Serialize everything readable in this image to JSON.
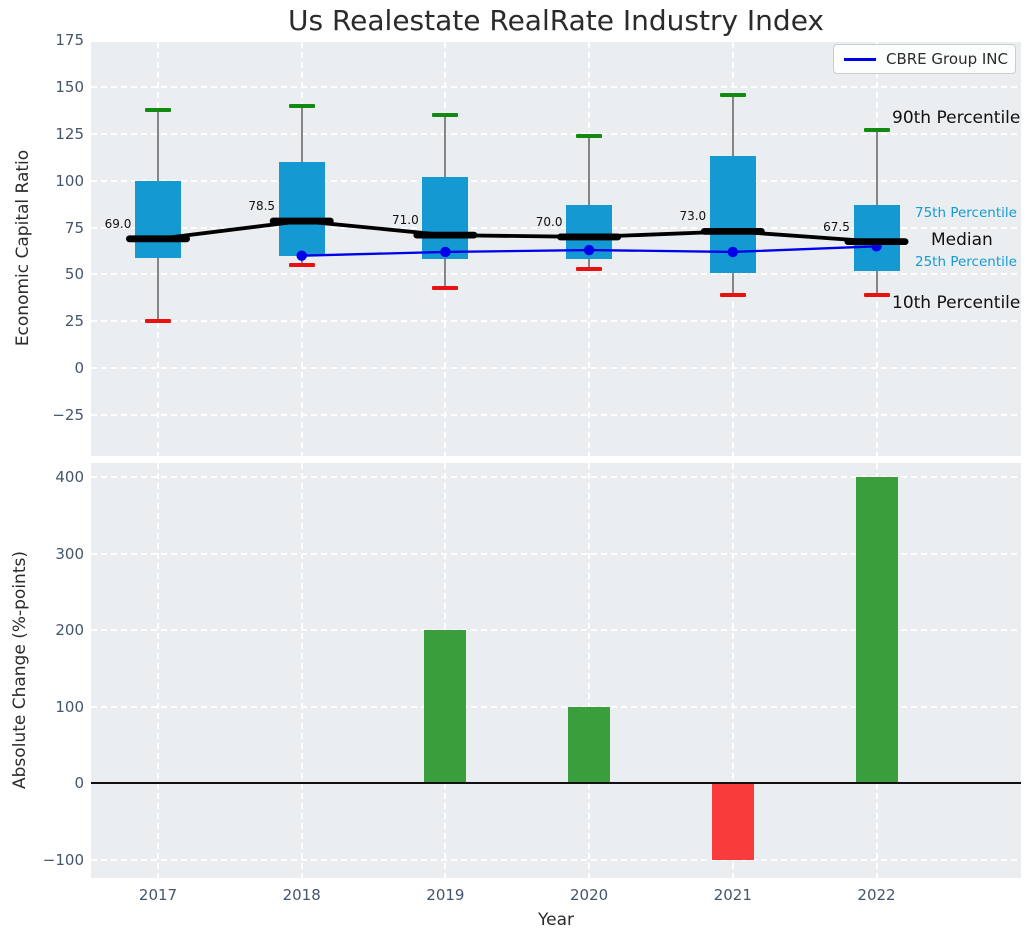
{
  "title": "Us Realestate RealRate Industry Index",
  "legend": {
    "label": "CBRE Group INC"
  },
  "colors": {
    "axes_background": "#eaeef1",
    "grid": "#ffffff",
    "box_fill": "#1499d3",
    "whisker": "#858585",
    "cap_90th": "#128a12",
    "cap_10th": "#e81212",
    "median_line": "#000000",
    "cbre_line": "#0000e8",
    "bar_positive": "#3a9e3c",
    "bar_negative": "#f93b3b",
    "tick_text": "#44566b",
    "percentile_small_text": "#179bd4"
  },
  "top_chart": {
    "ylabel": "Economic Capital Ratio",
    "yticks": [
      "175",
      "150",
      "125",
      "100",
      "75",
      "50",
      "25",
      "0",
      "−25"
    ],
    "ytick_values": [
      175,
      150,
      125,
      100,
      75,
      50,
      25,
      0,
      -25
    ],
    "percentile_labels": {
      "p90": "90th Percentile",
      "p75": "75th Percentile",
      "median": "Median",
      "p25": "25th Percentile",
      "p10": "10th Percentile"
    }
  },
  "bottom_chart": {
    "ylabel": "Absolute Change (%-points)",
    "xlabel": "Year",
    "yticks": [
      "400",
      "300",
      "200",
      "100",
      "0",
      "−100"
    ],
    "ytick_values": [
      400,
      300,
      200,
      100,
      0,
      -100
    ]
  },
  "chart_data": [
    {
      "type": "box",
      "title": "Us Realestate RealRate Industry Index",
      "ylabel": "Economic Capital Ratio",
      "categories": [
        "2017",
        "2018",
        "2019",
        "2020",
        "2021",
        "2022"
      ],
      "boxes": [
        {
          "year": "2017",
          "p10": 25,
          "p25": 59,
          "median": 69.0,
          "p75": 100,
          "p90": 138,
          "median_label": "69.0"
        },
        {
          "year": "2018",
          "p10": 55,
          "p25": 60,
          "median": 78.5,
          "p75": 110,
          "p90": 140,
          "median_label": "78.5"
        },
        {
          "year": "2019",
          "p10": 43,
          "p25": 58,
          "median": 71.0,
          "p75": 102,
          "p90": 135,
          "median_label": "71.0"
        },
        {
          "year": "2020",
          "p10": 53,
          "p25": 58,
          "median": 70.0,
          "p75": 87,
          "p90": 124,
          "median_label": "70.0"
        },
        {
          "year": "2021",
          "p10": 39,
          "p25": 51,
          "median": 73.0,
          "p75": 113,
          "p90": 146,
          "median_label": "73.0"
        },
        {
          "year": "2022",
          "p10": 39,
          "p25": 52,
          "median": 67.5,
          "p75": 87,
          "p90": 127,
          "median_label": "67.5"
        }
      ],
      "series": [
        {
          "name": "CBRE Group INC",
          "x": [
            "2018",
            "2019",
            "2020",
            "2021",
            "2022"
          ],
          "values": [
            60,
            62,
            63,
            62,
            65
          ]
        }
      ],
      "ylim": [
        -47,
        174
      ],
      "grid": true,
      "legend_position": "upper right"
    },
    {
      "type": "bar",
      "categories": [
        "2017",
        "2018",
        "2019",
        "2020",
        "2021",
        "2022"
      ],
      "values": [
        0,
        0,
        200,
        100,
        -100,
        400
      ],
      "ylabel": "Absolute Change (%-points)",
      "xlabel": "Year",
      "ylim": [
        -125,
        420
      ],
      "grid": true
    }
  ]
}
